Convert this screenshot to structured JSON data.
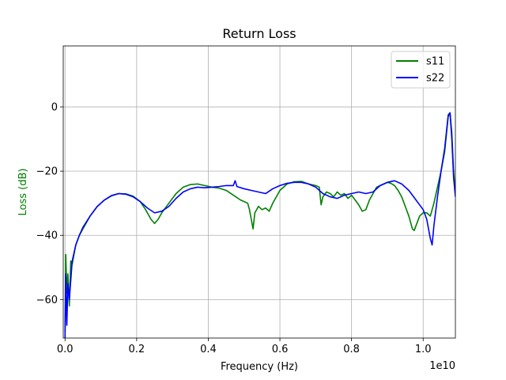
{
  "chart_data": {
    "type": "line",
    "title": "Return Loss",
    "xlabel": "Frequency (Hz)",
    "ylabel": "Loss (dB)",
    "x_offset_text": "1e10",
    "xlim": [
      -0.005,
      1.09
    ],
    "ylim": [
      -72,
      19
    ],
    "xticks": [
      0.0,
      0.2,
      0.4,
      0.6,
      0.8,
      1.0
    ],
    "xtick_labels": [
      "0.0",
      "0.2",
      "0.4",
      "0.6",
      "0.8",
      "1.0"
    ],
    "yticks": [
      -60,
      -40,
      -20,
      0
    ],
    "ytick_labels": [
      "−60",
      "−40",
      "−20",
      "0"
    ],
    "grid": true,
    "legend_position": "top-right",
    "colors": {
      "s11": "#008000",
      "s22": "#0000ff",
      "ylabel": "#008000",
      "grid": "#b0b0b0"
    },
    "series": [
      {
        "name": "s11",
        "color": "#008000",
        "points": [
          [
            0.0,
            -70
          ],
          [
            0.002,
            -46
          ],
          [
            0.005,
            -58
          ],
          [
            0.008,
            -52
          ],
          [
            0.012,
            -62
          ],
          [
            0.016,
            -48
          ],
          [
            0.02,
            -49
          ],
          [
            0.03,
            -43
          ],
          [
            0.04,
            -40
          ],
          [
            0.05,
            -38
          ],
          [
            0.07,
            -34
          ],
          [
            0.09,
            -31
          ],
          [
            0.11,
            -29
          ],
          [
            0.13,
            -27.7
          ],
          [
            0.15,
            -27
          ],
          [
            0.17,
            -27.1
          ],
          [
            0.19,
            -27.8
          ],
          [
            0.21,
            -29.5
          ],
          [
            0.225,
            -32
          ],
          [
            0.24,
            -35
          ],
          [
            0.25,
            -36.3
          ],
          [
            0.26,
            -35
          ],
          [
            0.27,
            -33
          ],
          [
            0.29,
            -30
          ],
          [
            0.31,
            -27
          ],
          [
            0.33,
            -25
          ],
          [
            0.35,
            -24.2
          ],
          [
            0.37,
            -24
          ],
          [
            0.39,
            -24.5
          ],
          [
            0.41,
            -25
          ],
          [
            0.43,
            -25.3
          ],
          [
            0.45,
            -26
          ],
          [
            0.47,
            -27.5
          ],
          [
            0.49,
            -29
          ],
          [
            0.5,
            -29.5
          ],
          [
            0.51,
            -30
          ],
          [
            0.515,
            -32
          ],
          [
            0.52,
            -35
          ],
          [
            0.525,
            -38
          ],
          [
            0.53,
            -33
          ],
          [
            0.54,
            -31
          ],
          [
            0.55,
            -32
          ],
          [
            0.56,
            -31.5
          ],
          [
            0.57,
            -32.5
          ],
          [
            0.58,
            -30
          ],
          [
            0.6,
            -26
          ],
          [
            0.62,
            -24
          ],
          [
            0.64,
            -23.3
          ],
          [
            0.66,
            -23.2
          ],
          [
            0.68,
            -24
          ],
          [
            0.7,
            -24.5
          ],
          [
            0.71,
            -25
          ],
          [
            0.715,
            -30.5
          ],
          [
            0.72,
            -28
          ],
          [
            0.73,
            -26.5
          ],
          [
            0.74,
            -27
          ],
          [
            0.75,
            -28
          ],
          [
            0.76,
            -26.5
          ],
          [
            0.77,
            -27.5
          ],
          [
            0.78,
            -27
          ],
          [
            0.79,
            -28.5
          ],
          [
            0.8,
            -27.5
          ],
          [
            0.81,
            -29
          ],
          [
            0.82,
            -30.5
          ],
          [
            0.83,
            -32.5
          ],
          [
            0.84,
            -32
          ],
          [
            0.85,
            -29
          ],
          [
            0.86,
            -27
          ],
          [
            0.87,
            -25
          ],
          [
            0.88,
            -24.5
          ],
          [
            0.89,
            -24
          ],
          [
            0.9,
            -23.5
          ],
          [
            0.91,
            -23.8
          ],
          [
            0.92,
            -24.5
          ],
          [
            0.93,
            -26
          ],
          [
            0.94,
            -28
          ],
          [
            0.95,
            -31
          ],
          [
            0.96,
            -34
          ],
          [
            0.97,
            -38
          ],
          [
            0.975,
            -38.5
          ],
          [
            0.98,
            -37
          ],
          [
            0.99,
            -34
          ],
          [
            1.0,
            -33
          ],
          [
            1.01,
            -33
          ],
          [
            1.02,
            -34
          ],
          [
            1.03,
            -30
          ],
          [
            1.04,
            -25
          ],
          [
            1.05,
            -20
          ],
          [
            1.06,
            -14
          ],
          [
            1.07,
            -3
          ],
          [
            1.075,
            -2
          ],
          [
            1.08,
            -8
          ],
          [
            1.085,
            -20
          ],
          [
            1.09,
            -27
          ]
        ]
      },
      {
        "name": "s22",
        "color": "#0000ff",
        "points": [
          [
            0.0,
            -72
          ],
          [
            0.002,
            -52
          ],
          [
            0.005,
            -68
          ],
          [
            0.008,
            -55
          ],
          [
            0.012,
            -60
          ],
          [
            0.016,
            -54
          ],
          [
            0.02,
            -48
          ],
          [
            0.03,
            -43
          ],
          [
            0.04,
            -40
          ],
          [
            0.05,
            -37.5
          ],
          [
            0.07,
            -34
          ],
          [
            0.09,
            -31
          ],
          [
            0.11,
            -29
          ],
          [
            0.13,
            -27.6
          ],
          [
            0.15,
            -27
          ],
          [
            0.17,
            -27.2
          ],
          [
            0.19,
            -28
          ],
          [
            0.21,
            -29.5
          ],
          [
            0.23,
            -31.5
          ],
          [
            0.25,
            -33
          ],
          [
            0.27,
            -32.5
          ],
          [
            0.29,
            -31
          ],
          [
            0.31,
            -28.5
          ],
          [
            0.33,
            -26.5
          ],
          [
            0.35,
            -25.5
          ],
          [
            0.37,
            -25
          ],
          [
            0.39,
            -25.2
          ],
          [
            0.41,
            -25
          ],
          [
            0.43,
            -24.8
          ],
          [
            0.45,
            -24.5
          ],
          [
            0.47,
            -24.5
          ],
          [
            0.475,
            -23
          ],
          [
            0.48,
            -24.8
          ],
          [
            0.5,
            -25.5
          ],
          [
            0.52,
            -26
          ],
          [
            0.54,
            -26.5
          ],
          [
            0.56,
            -27
          ],
          [
            0.58,
            -25.5
          ],
          [
            0.6,
            -24.5
          ],
          [
            0.62,
            -23.8
          ],
          [
            0.64,
            -23.5
          ],
          [
            0.66,
            -23.5
          ],
          [
            0.68,
            -24
          ],
          [
            0.7,
            -25
          ],
          [
            0.72,
            -27
          ],
          [
            0.74,
            -28
          ],
          [
            0.76,
            -28.5
          ],
          [
            0.78,
            -27.5
          ],
          [
            0.8,
            -27
          ],
          [
            0.82,
            -26.5
          ],
          [
            0.84,
            -27
          ],
          [
            0.86,
            -26.5
          ],
          [
            0.88,
            -24.5
          ],
          [
            0.9,
            -23.5
          ],
          [
            0.92,
            -23
          ],
          [
            0.94,
            -24
          ],
          [
            0.96,
            -26
          ],
          [
            0.98,
            -29
          ],
          [
            1.0,
            -32
          ],
          [
            1.01,
            -35
          ],
          [
            1.02,
            -41
          ],
          [
            1.025,
            -43
          ],
          [
            1.03,
            -37
          ],
          [
            1.04,
            -28
          ],
          [
            1.05,
            -20
          ],
          [
            1.06,
            -13
          ],
          [
            1.07,
            -2.5
          ],
          [
            1.075,
            -1.8
          ],
          [
            1.08,
            -10
          ],
          [
            1.085,
            -22
          ],
          [
            1.09,
            -28
          ]
        ]
      }
    ]
  }
}
